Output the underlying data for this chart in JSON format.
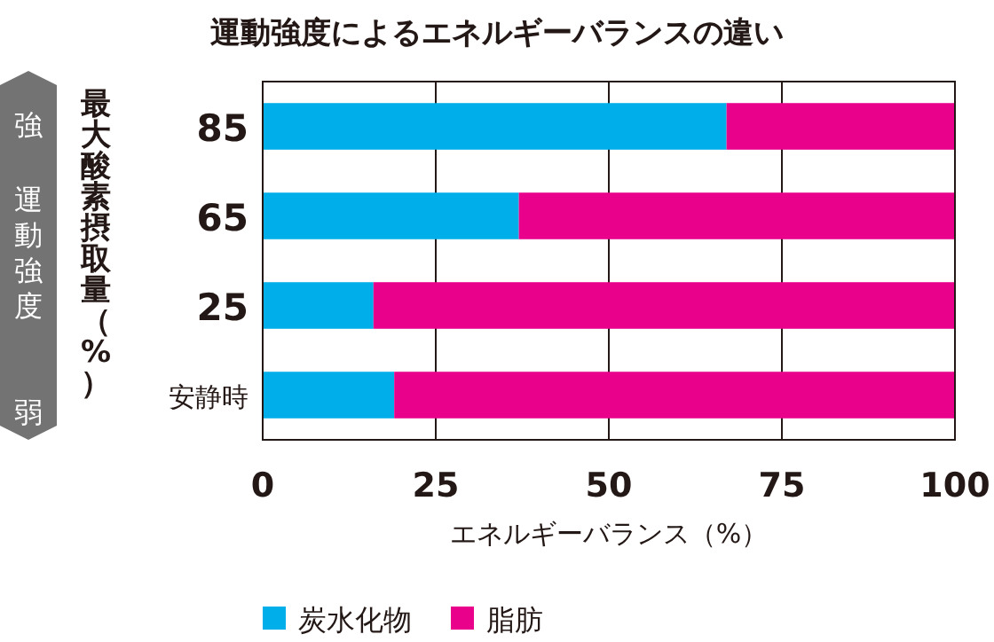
{
  "chart_data": {
    "type": "bar",
    "orientation": "horizontal",
    "stacked": true,
    "title": "運動強度によるエネルギーバランスの違い",
    "xlabel": "エネルギーバランス（%）",
    "ylabel": "最大酸素摂取量（%）",
    "annotations": [
      "強",
      "運動強度",
      "弱"
    ],
    "categories": [
      "85",
      "65",
      "25",
      "安静時"
    ],
    "series": [
      {
        "name": "炭水化物",
        "color": "#00aeea",
        "values": [
          67,
          37,
          16,
          19
        ]
      },
      {
        "name": "脂肪",
        "color": "#e9008b",
        "values": [
          33,
          63,
          84,
          81
        ]
      }
    ],
    "xlim": [
      0,
      100
    ],
    "xticks": [
      0,
      25,
      50,
      75,
      100
    ],
    "grid": "x",
    "legend": "bottom"
  }
}
